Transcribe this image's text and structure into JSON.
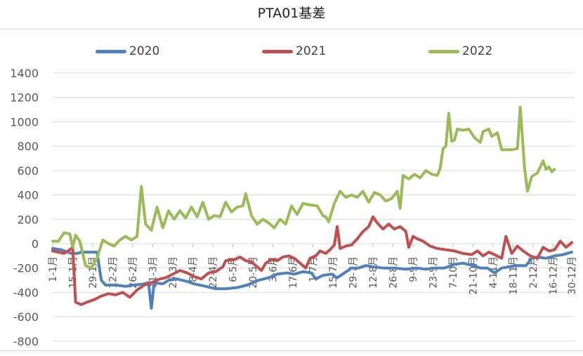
{
  "title": "PTA01基差",
  "legend": [
    {
      "label": "2020",
      "color": "#4f81bd"
    },
    {
      "label": "2021",
      "color": "#c0504d"
    },
    {
      "label": "2022",
      "color": "#9bbb59"
    }
  ],
  "chart_data": {
    "type": "line",
    "title": "PTA01基差",
    "xlabel": "",
    "ylabel": "",
    "ylim": [
      -800,
      1400
    ],
    "yticks": [
      1400,
      1200,
      1000,
      800,
      600,
      400,
      200,
      0,
      -200,
      -400,
      -600,
      -800
    ],
    "grid": true,
    "legend_position": "top",
    "x_tick_labels": [
      "1-1月",
      "15-1月",
      "29-1月",
      "12-2月",
      "26-2月",
      "11-3月",
      "25-3月",
      "8-4月",
      "22-4月",
      "6-5月",
      "20-5月",
      "3-6月",
      "17-6月",
      "1-7月",
      "15-7月",
      "29-7月",
      "12-8月",
      "26-8月",
      "9-9月",
      "23-9月",
      "7-10月",
      "21-10月",
      "4-11月",
      "18-11月",
      "2-12月",
      "16-12月",
      "30-12月"
    ],
    "x_day_of_year": true,
    "series": [
      {
        "name": "2020",
        "color": "#4f81bd",
        "points": [
          [
            1,
            -40
          ],
          [
            7,
            -50
          ],
          [
            14,
            -80
          ],
          [
            18,
            -80
          ],
          [
            21,
            -70
          ],
          [
            25,
            -70
          ],
          [
            32,
            -70
          ],
          [
            35,
            -300
          ],
          [
            38,
            -340
          ],
          [
            45,
            -340
          ],
          [
            52,
            -350
          ],
          [
            58,
            -340
          ],
          [
            65,
            -330
          ],
          [
            68,
            -320
          ],
          [
            70,
            -530
          ],
          [
            72,
            -320
          ],
          [
            78,
            -330
          ],
          [
            82,
            -300
          ],
          [
            88,
            -290
          ],
          [
            95,
            -310
          ],
          [
            100,
            -330
          ],
          [
            108,
            -350
          ],
          [
            115,
            -370
          ],
          [
            122,
            -370
          ],
          [
            130,
            -360
          ],
          [
            137,
            -340
          ],
          [
            145,
            -300
          ],
          [
            152,
            -280
          ],
          [
            158,
            -250
          ],
          [
            165,
            -240
          ],
          [
            170,
            -250
          ],
          [
            176,
            -230
          ],
          [
            182,
            -240
          ],
          [
            185,
            -290
          ],
          [
            190,
            -260
          ],
          [
            196,
            -250
          ],
          [
            200,
            -280
          ],
          [
            205,
            -240
          ],
          [
            210,
            -200
          ],
          [
            215,
            -200
          ],
          [
            220,
            -180
          ],
          [
            225,
            -190
          ],
          [
            232,
            -200
          ],
          [
            240,
            -200
          ],
          [
            248,
            -210
          ],
          [
            255,
            -200
          ],
          [
            262,
            -210
          ],
          [
            268,
            -200
          ],
          [
            275,
            -200
          ],
          [
            282,
            -170
          ],
          [
            288,
            -160
          ],
          [
            295,
            -180
          ],
          [
            300,
            -200
          ],
          [
            305,
            -200
          ],
          [
            310,
            -240
          ],
          [
            315,
            -200
          ],
          [
            320,
            -190
          ],
          [
            326,
            -180
          ],
          [
            332,
            -180
          ],
          [
            336,
            -120
          ],
          [
            340,
            -110
          ],
          [
            346,
            -120
          ],
          [
            352,
            -100
          ],
          [
            358,
            -90
          ],
          [
            364,
            -70
          ]
        ]
      },
      {
        "name": "2021",
        "color": "#c0504d",
        "points": [
          [
            1,
            -60
          ],
          [
            5,
            -70
          ],
          [
            9,
            -80
          ],
          [
            13,
            -50
          ],
          [
            15,
            -30
          ],
          [
            17,
            -480
          ],
          [
            21,
            -500
          ],
          [
            25,
            -480
          ],
          [
            30,
            -460
          ],
          [
            35,
            -430
          ],
          [
            40,
            -410
          ],
          [
            45,
            -420
          ],
          [
            50,
            -400
          ],
          [
            55,
            -440
          ],
          [
            60,
            -380
          ],
          [
            65,
            -340
          ],
          [
            68,
            -330
          ],
          [
            72,
            -310
          ],
          [
            76,
            -290
          ],
          [
            80,
            -280
          ],
          [
            85,
            -250
          ],
          [
            90,
            -220
          ],
          [
            95,
            -240
          ],
          [
            100,
            -270
          ],
          [
            105,
            -290
          ],
          [
            110,
            -240
          ],
          [
            115,
            -230
          ],
          [
            120,
            -190
          ],
          [
            122,
            -140
          ],
          [
            128,
            -130
          ],
          [
            132,
            -110
          ],
          [
            136,
            -140
          ],
          [
            140,
            -150
          ],
          [
            144,
            -190
          ],
          [
            147,
            -220
          ],
          [
            150,
            -160
          ],
          [
            154,
            -130
          ],
          [
            158,
            -140
          ],
          [
            162,
            -110
          ],
          [
            166,
            -100
          ],
          [
            170,
            -120
          ],
          [
            174,
            -160
          ],
          [
            178,
            -200
          ],
          [
            181,
            -120
          ],
          [
            185,
            -100
          ],
          [
            188,
            -60
          ],
          [
            192,
            -80
          ],
          [
            195,
            -50
          ],
          [
            198,
            -10
          ],
          [
            200,
            140
          ],
          [
            202,
            -40
          ],
          [
            206,
            -20
          ],
          [
            210,
            -10
          ],
          [
            214,
            40
          ],
          [
            218,
            100
          ],
          [
            222,
            140
          ],
          [
            225,
            220
          ],
          [
            228,
            170
          ],
          [
            232,
            120
          ],
          [
            236,
            160
          ],
          [
            240,
            120
          ],
          [
            244,
            140
          ],
          [
            248,
            100
          ],
          [
            250,
            -30
          ],
          [
            253,
            60
          ],
          [
            256,
            40
          ],
          [
            260,
            20
          ],
          [
            265,
            -20
          ],
          [
            270,
            -40
          ],
          [
            276,
            -50
          ],
          [
            282,
            -60
          ],
          [
            288,
            -80
          ],
          [
            294,
            -90
          ],
          [
            298,
            -60
          ],
          [
            302,
            -100
          ],
          [
            306,
            -70
          ],
          [
            310,
            -90
          ],
          [
            315,
            -120
          ],
          [
            318,
            60
          ],
          [
            322,
            -80
          ],
          [
            326,
            -20
          ],
          [
            330,
            -60
          ],
          [
            335,
            -100
          ],
          [
            340,
            -120
          ],
          [
            344,
            -30
          ],
          [
            348,
            -60
          ],
          [
            352,
            -50
          ],
          [
            356,
            20
          ],
          [
            360,
            -30
          ],
          [
            364,
            10
          ]
        ]
      },
      {
        "name": "2022",
        "color": "#9bbb59",
        "points": [
          [
            1,
            20
          ],
          [
            5,
            20
          ],
          [
            9,
            90
          ],
          [
            13,
            80
          ],
          [
            15,
            -30
          ],
          [
            17,
            70
          ],
          [
            20,
            20
          ],
          [
            24,
            -180
          ],
          [
            28,
            -200
          ],
          [
            32,
            -120
          ],
          [
            36,
            30
          ],
          [
            40,
            0
          ],
          [
            44,
            -20
          ],
          [
            48,
            30
          ],
          [
            52,
            60
          ],
          [
            56,
            30
          ],
          [
            60,
            60
          ],
          [
            63,
            470
          ],
          [
            66,
            160
          ],
          [
            70,
            110
          ],
          [
            74,
            300
          ],
          [
            78,
            130
          ],
          [
            82,
            270
          ],
          [
            86,
            200
          ],
          [
            90,
            270
          ],
          [
            94,
            210
          ],
          [
            98,
            300
          ],
          [
            102,
            220
          ],
          [
            106,
            340
          ],
          [
            110,
            200
          ],
          [
            114,
            230
          ],
          [
            118,
            220
          ],
          [
            122,
            340
          ],
          [
            126,
            260
          ],
          [
            130,
            300
          ],
          [
            134,
            310
          ],
          [
            136,
            410
          ],
          [
            140,
            230
          ],
          [
            144,
            160
          ],
          [
            148,
            200
          ],
          [
            152,
            170
          ],
          [
            156,
            130
          ],
          [
            160,
            200
          ],
          [
            164,
            160
          ],
          [
            168,
            310
          ],
          [
            172,
            240
          ],
          [
            176,
            330
          ],
          [
            180,
            320
          ],
          [
            186,
            310
          ],
          [
            190,
            230
          ],
          [
            192,
            220
          ],
          [
            194,
            180
          ],
          [
            198,
            330
          ],
          [
            202,
            430
          ],
          [
            206,
            380
          ],
          [
            210,
            400
          ],
          [
            214,
            380
          ],
          [
            218,
            430
          ],
          [
            222,
            340
          ],
          [
            226,
            420
          ],
          [
            230,
            400
          ],
          [
            234,
            350
          ],
          [
            238,
            370
          ],
          [
            242,
            430
          ],
          [
            244,
            290
          ],
          [
            246,
            560
          ],
          [
            250,
            530
          ],
          [
            254,
            570
          ],
          [
            258,
            540
          ],
          [
            262,
            600
          ],
          [
            266,
            570
          ],
          [
            270,
            560
          ],
          [
            272,
            620
          ],
          [
            274,
            780
          ],
          [
            276,
            800
          ],
          [
            278,
            1070
          ],
          [
            280,
            840
          ],
          [
            282,
            850
          ],
          [
            284,
            940
          ],
          [
            288,
            930
          ],
          [
            292,
            940
          ],
          [
            296,
            870
          ],
          [
            300,
            830
          ],
          [
            302,
            920
          ],
          [
            306,
            940
          ],
          [
            308,
            880
          ],
          [
            312,
            910
          ],
          [
            315,
            770
          ],
          [
            318,
            770
          ],
          [
            322,
            770
          ],
          [
            326,
            780
          ],
          [
            328,
            1120
          ],
          [
            331,
            620
          ],
          [
            333,
            430
          ],
          [
            336,
            550
          ],
          [
            340,
            580
          ],
          [
            344,
            680
          ],
          [
            346,
            610
          ],
          [
            348,
            630
          ],
          [
            350,
            590
          ],
          [
            352,
            610
          ]
        ]
      }
    ]
  }
}
